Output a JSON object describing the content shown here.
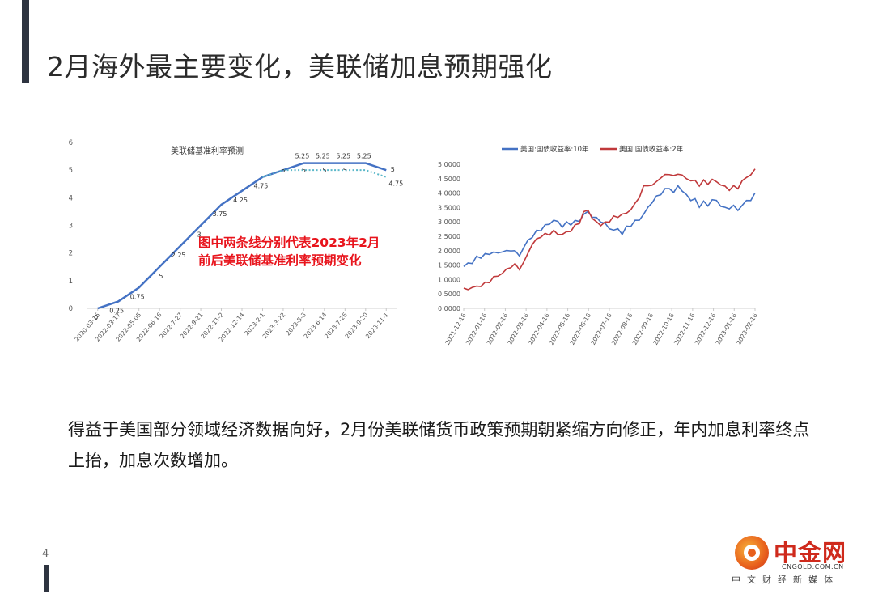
{
  "slide": {
    "title": "2月海外最主要变化，美联储加息预期强化",
    "annotation_line1": "图中两条线分别代表2023年2月",
    "annotation_line2": "前后美联储基准利率预期变化",
    "body": "得益于美国部分领域经济数据向好，2月份美联储货币政策预期朝紧缩方向修正，年内加息利率终点上抬，加息次数增加。",
    "page_number": "4"
  },
  "logo": {
    "name": "中金网",
    "url": "CNGOLD.COM.CN",
    "tagline": "中文财经新媒体"
  },
  "chart_data": [
    {
      "type": "line",
      "title": "美联储基准利率预测",
      "categories": [
        "2020-03-15",
        "2022-03-17",
        "2022-05-05",
        "2022-06-16",
        "2022-7-27",
        "2022-9-21",
        "2022-11-2",
        "2022-12-14",
        "2023-2-1",
        "2023-3-22",
        "2023-5-3",
        "2023-6-14",
        "2023-7-26",
        "2023-9-20",
        "2023-11-1"
      ],
      "ylim": [
        0,
        6
      ],
      "yticks": [
        0,
        1,
        2,
        3,
        4,
        5,
        6
      ],
      "series": [
        {
          "color": "#4472c4",
          "style": "solid",
          "values": [
            0,
            0.25,
            0.75,
            1.5,
            2.25,
            3,
            3.75,
            4.25,
            4.75,
            5,
            5.25,
            5.25,
            5.25,
            5.25,
            5
          ],
          "labels": [
            "0",
            "0.25",
            "0.75",
            "1.5",
            "2.25",
            "3",
            "3.75",
            "4.25",
            "4.75",
            "",
            "5.25",
            "5.25",
            "5.25",
            "5.25",
            "5"
          ]
        },
        {
          "color": "#5bb8c9",
          "style": "dotted",
          "values": [
            null,
            null,
            null,
            null,
            null,
            null,
            null,
            null,
            4.75,
            5,
            5,
            5,
            5,
            5,
            4.75
          ],
          "labels": [
            "",
            "",
            "",
            "",
            "",
            "",
            "",
            "",
            "",
            "5",
            "5",
            "5",
            "5",
            "",
            "4.75"
          ]
        }
      ],
      "grid": false,
      "legend": "none"
    },
    {
      "type": "line",
      "title": "",
      "legend": "top",
      "legend_entries": [
        "美国:国债收益率:10年",
        "美国:国债收益率:2年"
      ],
      "colors": [
        "#4472c4",
        "#c0393b"
      ],
      "ylim": [
        0,
        5
      ],
      "yticks": [
        "0.0000",
        "0.5000",
        "1.0000",
        "1.5000",
        "2.0000",
        "2.5000",
        "3.0000",
        "3.5000",
        "4.0000",
        "4.5000",
        "5.0000"
      ],
      "x_ticks": [
        "2021-12-16",
        "2022-01-16",
        "2022-02-16",
        "2022-03-16",
        "2022-04-16",
        "2022-05-16",
        "2022-06-16",
        "2022-07-16",
        "2022-08-16",
        "2022-09-16",
        "2022-10-16",
        "2022-11-16",
        "2022-12-16",
        "2023-01-16",
        "2023-02-16"
      ],
      "series": [
        {
          "name": "美国:国债收益率:10年",
          "values": [
            1.45,
            1.55,
            1.6,
            1.75,
            1.8,
            1.85,
            1.9,
            1.95,
            1.9,
            2.0,
            1.95,
            2.05,
            1.95,
            1.85,
            2.1,
            2.35,
            2.5,
            2.65,
            2.75,
            2.85,
            2.95,
            3.05,
            3.0,
            2.85,
            2.95,
            2.95,
            3.0,
            3.05,
            3.25,
            3.35,
            3.2,
            3.1,
            3.05,
            2.9,
            2.8,
            2.7,
            2.75,
            2.6,
            2.8,
            2.9,
            3.0,
            3.1,
            3.25,
            3.5,
            3.7,
            3.85,
            4.0,
            4.1,
            4.2,
            4.0,
            4.25,
            4.1,
            3.9,
            3.8,
            3.75,
            3.55,
            3.7,
            3.55,
            3.8,
            3.7,
            3.6,
            3.45,
            3.5,
            3.55,
            3.4,
            3.6,
            3.7,
            3.8,
            3.95
          ]
        },
        {
          "name": "美国:国债收益率:2年",
          "values": [
            0.65,
            0.68,
            0.72,
            0.75,
            0.8,
            0.85,
            0.95,
            1.05,
            1.15,
            1.2,
            1.35,
            1.45,
            1.5,
            1.4,
            1.55,
            1.95,
            2.2,
            2.4,
            2.5,
            2.55,
            2.6,
            2.65,
            2.6,
            2.55,
            2.65,
            2.7,
            2.85,
            3.0,
            3.3,
            3.45,
            3.1,
            3.0,
            2.9,
            2.95,
            3.05,
            3.15,
            3.2,
            3.25,
            3.3,
            3.45,
            3.6,
            3.9,
            4.2,
            4.3,
            4.25,
            4.4,
            4.55,
            4.6,
            4.7,
            4.55,
            4.7,
            4.6,
            4.5,
            4.45,
            4.4,
            4.3,
            4.4,
            4.35,
            4.45,
            4.4,
            4.3,
            4.2,
            4.15,
            4.2,
            4.2,
            4.4,
            4.55,
            4.65,
            4.8
          ]
        }
      ],
      "grid": false
    }
  ]
}
